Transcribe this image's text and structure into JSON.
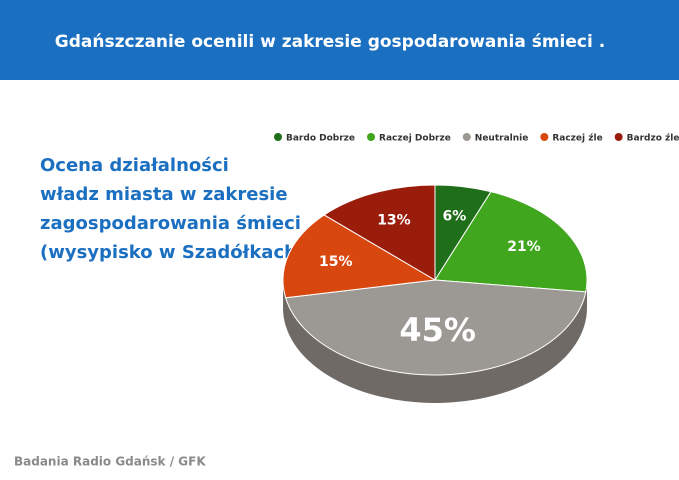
{
  "chart_data": {
    "type": "pie",
    "title": "Gdańszczanie ocenili w zakresie gospodarowania śmieci .",
    "subtitle": [
      "Ocena działalności",
      "władz miasta w zakresie",
      "zagospodarowania śmieci",
      "(wysypisko w Szadółkach)"
    ],
    "source": "Badania Radio Gdańsk / GFK",
    "categories": [
      "Bardo Dobrze",
      "Raczej Dobrze",
      "Neutralnie",
      "Raczej źle",
      "Bardzo źle"
    ],
    "values": [
      6,
      21,
      45,
      15,
      13
    ],
    "value_labels": [
      "6%",
      "21%",
      "45%",
      "15%",
      "13%"
    ],
    "colors": [
      "#1f6e1a",
      "#3fa61e",
      "#9c9893",
      "#d8470e",
      "#9a1d0c"
    ],
    "legend": "top"
  }
}
